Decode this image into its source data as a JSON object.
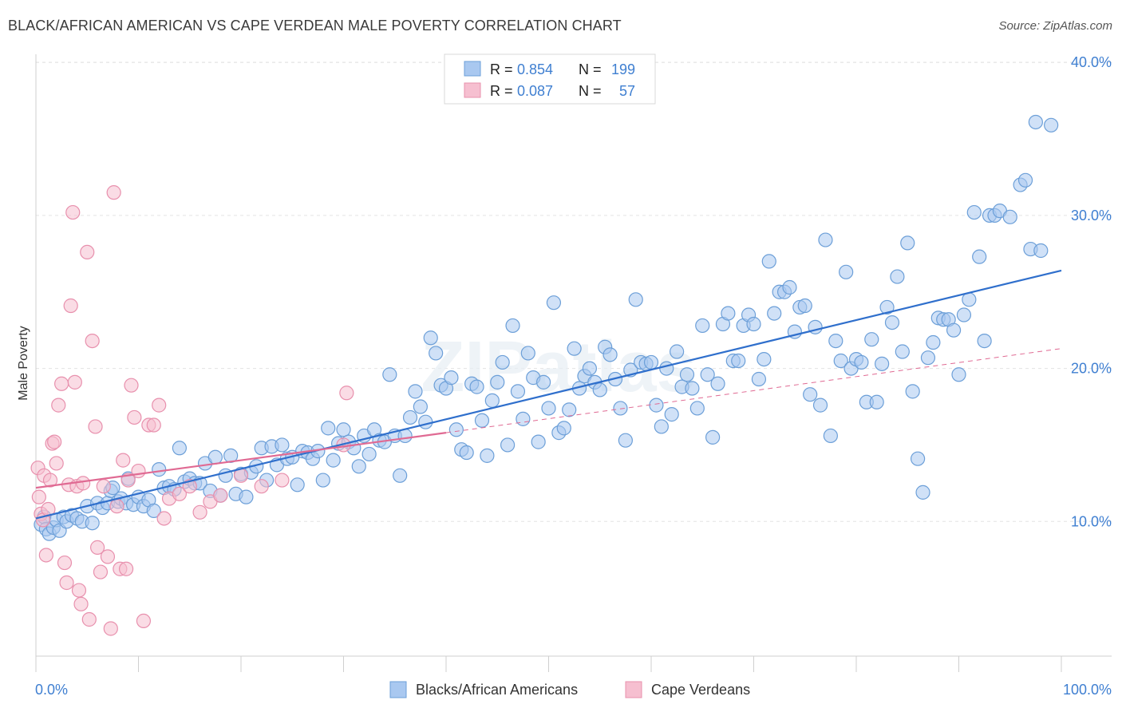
{
  "header": {
    "title": "BLACK/AFRICAN AMERICAN VS CAPE VERDEAN MALE POVERTY CORRELATION CHART",
    "source": "Source: ZipAtlas.com"
  },
  "watermark": "ZIPatlas",
  "stats": [
    {
      "r_label": "R =",
      "r_value": "0.854",
      "n_label": "N =",
      "n_value": "199"
    },
    {
      "r_label": "R =",
      "r_value": "0.087",
      "n_label": "N =",
      "n_value": "57"
    }
  ],
  "colors": {
    "blue_fill": "#a9c8f0",
    "blue_stroke": "#6c9fd8",
    "blue_line": "#2f6fcc",
    "pink_fill": "#f6bfd0",
    "pink_stroke": "#e890ad",
    "pink_line": "#e06a93",
    "value_text": "#3f7fd1",
    "grid": "#e0e0e0"
  },
  "chart_data": {
    "type": "scatter",
    "title": "BLACK/AFRICAN AMERICAN VS CAPE VERDEAN MALE POVERTY CORRELATION CHART",
    "xlabel": "",
    "ylabel": "Male Poverty",
    "x_tick_labels": [
      "0.0%",
      "100.0%"
    ],
    "y_tick_labels": [
      "10.0%",
      "20.0%",
      "30.0%",
      "40.0%"
    ],
    "y_ticks": [
      10,
      20,
      30,
      40
    ],
    "xlim": [
      0,
      100
    ],
    "ylim": [
      0,
      42
    ],
    "grid": true,
    "legend_position": "bottom-center",
    "series": [
      {
        "name": "Blacks/African Americans",
        "color": "#a9c8f0",
        "trend": {
          "x": [
            0,
            100
          ],
          "y": [
            10.2,
            26.4
          ],
          "style": "solid"
        },
        "points": [
          [
            0.5,
            9.8
          ],
          [
            0.8,
            10.3
          ],
          [
            1,
            9.5
          ],
          [
            1.3,
            9.2
          ],
          [
            1.7,
            9.6
          ],
          [
            2,
            10.1
          ],
          [
            2.3,
            9.4
          ],
          [
            2.7,
            10.3
          ],
          [
            3,
            10.0
          ],
          [
            3.5,
            10.4
          ],
          [
            4,
            10.2
          ],
          [
            4.5,
            10.0
          ],
          [
            5,
            11.0
          ],
          [
            5.5,
            9.9
          ],
          [
            6,
            11.2
          ],
          [
            6.5,
            10.9
          ],
          [
            7,
            11.2
          ],
          [
            7.3,
            12.0
          ],
          [
            7.5,
            12.2
          ],
          [
            8,
            11.3
          ],
          [
            8.3,
            11.5
          ],
          [
            8.8,
            11.2
          ],
          [
            9,
            12.8
          ],
          [
            9.5,
            11.1
          ],
          [
            10,
            11.6
          ],
          [
            10.5,
            11.0
          ],
          [
            11,
            11.4
          ],
          [
            11.5,
            10.7
          ],
          [
            12,
            13.4
          ],
          [
            12.5,
            12.2
          ],
          [
            13,
            12.3
          ],
          [
            13.5,
            12.1
          ],
          [
            14,
            14.8
          ],
          [
            14.5,
            12.6
          ],
          [
            15,
            12.8
          ],
          [
            15.5,
            12.5
          ],
          [
            16,
            12.5
          ],
          [
            16.5,
            13.8
          ],
          [
            17,
            12.0
          ],
          [
            17.5,
            14.2
          ],
          [
            18,
            11.7
          ],
          [
            18.5,
            13.0
          ],
          [
            19,
            14.3
          ],
          [
            19.5,
            11.8
          ],
          [
            20,
            13.1
          ],
          [
            20.5,
            11.6
          ],
          [
            21,
            13.2
          ],
          [
            21.5,
            13.6
          ],
          [
            22,
            14.8
          ],
          [
            22.5,
            12.7
          ],
          [
            23,
            14.9
          ],
          [
            23.5,
            13.7
          ],
          [
            24,
            15.0
          ],
          [
            24.5,
            14.1
          ],
          [
            25,
            14.2
          ],
          [
            25.5,
            12.4
          ],
          [
            26,
            14.6
          ],
          [
            26.5,
            14.5
          ],
          [
            27,
            14.1
          ],
          [
            27.5,
            14.6
          ],
          [
            28,
            12.7
          ],
          [
            28.5,
            16.1
          ],
          [
            29,
            14.0
          ],
          [
            29.5,
            15.1
          ],
          [
            30,
            16.0
          ],
          [
            30.5,
            15.2
          ],
          [
            31,
            14.8
          ],
          [
            31.5,
            13.6
          ],
          [
            32,
            15.6
          ],
          [
            32.5,
            14.4
          ],
          [
            33,
            16.0
          ],
          [
            33.5,
            15.3
          ],
          [
            34,
            15.2
          ],
          [
            34.5,
            19.6
          ],
          [
            35,
            15.6
          ],
          [
            35.5,
            13.0
          ],
          [
            36,
            15.6
          ],
          [
            36.5,
            16.8
          ],
          [
            37,
            18.5
          ],
          [
            37.5,
            17.5
          ],
          [
            38,
            16.5
          ],
          [
            38.5,
            22.0
          ],
          [
            39,
            21.0
          ],
          [
            39.5,
            18.9
          ],
          [
            40,
            18.7
          ],
          [
            40.5,
            19.4
          ],
          [
            41,
            16.0
          ],
          [
            41.5,
            14.7
          ],
          [
            42,
            14.5
          ],
          [
            42.5,
            19.0
          ],
          [
            43,
            18.8
          ],
          [
            43.5,
            16.6
          ],
          [
            44,
            14.3
          ],
          [
            44.5,
            17.9
          ],
          [
            45,
            19.1
          ],
          [
            45.5,
            20.4
          ],
          [
            46,
            15.0
          ],
          [
            46.5,
            22.8
          ],
          [
            47,
            18.5
          ],
          [
            47.5,
            16.7
          ],
          [
            48,
            21.0
          ],
          [
            48.5,
            19.4
          ],
          [
            49,
            15.2
          ],
          [
            49.5,
            19.1
          ],
          [
            50,
            17.4
          ],
          [
            50.5,
            24.3
          ],
          [
            51,
            15.8
          ],
          [
            51.5,
            16.1
          ],
          [
            52,
            17.3
          ],
          [
            52.5,
            21.3
          ],
          [
            53,
            18.7
          ],
          [
            53.5,
            19.5
          ],
          [
            54,
            20.0
          ],
          [
            54.5,
            19.1
          ],
          [
            55,
            18.6
          ],
          [
            55.5,
            21.4
          ],
          [
            56,
            20.9
          ],
          [
            56.5,
            19.3
          ],
          [
            57,
            17.4
          ],
          [
            57.5,
            15.3
          ],
          [
            58,
            19.9
          ],
          [
            58.5,
            24.5
          ],
          [
            59,
            20.4
          ],
          [
            59.5,
            20.3
          ],
          [
            60,
            20.4
          ],
          [
            60.5,
            17.6
          ],
          [
            61,
            16.2
          ],
          [
            61.5,
            20.0
          ],
          [
            62,
            17.0
          ],
          [
            62.5,
            21.1
          ],
          [
            63,
            18.8
          ],
          [
            63.5,
            19.6
          ],
          [
            64,
            18.7
          ],
          [
            64.5,
            17.4
          ],
          [
            65,
            22.8
          ],
          [
            65.5,
            19.6
          ],
          [
            66,
            15.5
          ],
          [
            66.5,
            19.0
          ],
          [
            67,
            22.9
          ],
          [
            67.5,
            23.6
          ],
          [
            68,
            20.5
          ],
          [
            68.5,
            20.5
          ],
          [
            69,
            22.8
          ],
          [
            69.5,
            23.5
          ],
          [
            70,
            22.9
          ],
          [
            70.5,
            19.3
          ],
          [
            71,
            20.6
          ],
          [
            71.5,
            27.0
          ],
          [
            72,
            23.6
          ],
          [
            72.5,
            25.0
          ],
          [
            73,
            25.0
          ],
          [
            73.5,
            25.3
          ],
          [
            74,
            22.4
          ],
          [
            74.5,
            24.0
          ],
          [
            75,
            24.1
          ],
          [
            75.5,
            18.3
          ],
          [
            76,
            22.7
          ],
          [
            76.5,
            17.6
          ],
          [
            77,
            28.4
          ],
          [
            77.5,
            15.6
          ],
          [
            78,
            21.8
          ],
          [
            78.5,
            20.5
          ],
          [
            79,
            26.3
          ],
          [
            79.5,
            20.0
          ],
          [
            80,
            20.6
          ],
          [
            80.5,
            20.4
          ],
          [
            81,
            17.8
          ],
          [
            81.5,
            21.9
          ],
          [
            82,
            17.8
          ],
          [
            82.5,
            20.3
          ],
          [
            83,
            24.0
          ],
          [
            83.5,
            23.0
          ],
          [
            84,
            26.0
          ],
          [
            84.5,
            21.1
          ],
          [
            85,
            28.2
          ],
          [
            85.5,
            18.5
          ],
          [
            86,
            14.1
          ],
          [
            86.5,
            11.9
          ],
          [
            87,
            20.7
          ],
          [
            87.5,
            21.7
          ],
          [
            88,
            23.3
          ],
          [
            88.5,
            23.2
          ],
          [
            89,
            23.2
          ],
          [
            89.5,
            22.5
          ],
          [
            90,
            19.6
          ],
          [
            90.5,
            23.5
          ],
          [
            91,
            24.5
          ],
          [
            91.5,
            30.2
          ],
          [
            92,
            27.3
          ],
          [
            92.5,
            21.8
          ],
          [
            93,
            30.0
          ],
          [
            93.5,
            30.0
          ],
          [
            94,
            30.3
          ],
          [
            95,
            29.9
          ],
          [
            96,
            32.0
          ],
          [
            96.5,
            32.3
          ],
          [
            97,
            27.8
          ],
          [
            97.5,
            36.1
          ],
          [
            98,
            27.7
          ],
          [
            99,
            35.9
          ]
        ]
      },
      {
        "name": "Cape Verdeans",
        "color": "#f6bfd0",
        "trend": {
          "x": [
            0,
            40
          ],
          "y": [
            12.2,
            15.8
          ],
          "x_dashed_end": 100,
          "y_dashed_end": 21.3,
          "style": "solid-then-dashed"
        },
        "points": [
          [
            0.2,
            13.5
          ],
          [
            0.3,
            11.6
          ],
          [
            0.5,
            10.5
          ],
          [
            0.7,
            10.1
          ],
          [
            0.8,
            13.0
          ],
          [
            1,
            7.8
          ],
          [
            1.2,
            10.8
          ],
          [
            1.4,
            12.7
          ],
          [
            1.6,
            15.1
          ],
          [
            1.8,
            15.2
          ],
          [
            2,
            13.8
          ],
          [
            2.2,
            17.6
          ],
          [
            2.5,
            19.0
          ],
          [
            2.8,
            7.3
          ],
          [
            3,
            6.0
          ],
          [
            3.2,
            12.4
          ],
          [
            3.4,
            24.1
          ],
          [
            3.6,
            30.2
          ],
          [
            3.8,
            19.1
          ],
          [
            4,
            12.3
          ],
          [
            4.2,
            5.5
          ],
          [
            4.4,
            4.6
          ],
          [
            4.6,
            12.5
          ],
          [
            5,
            27.6
          ],
          [
            5.2,
            3.6
          ],
          [
            5.5,
            21.8
          ],
          [
            5.8,
            16.2
          ],
          [
            6,
            8.3
          ],
          [
            6.3,
            6.7
          ],
          [
            6.6,
            12.3
          ],
          [
            7,
            7.7
          ],
          [
            7.3,
            3.0
          ],
          [
            7.6,
            31.5
          ],
          [
            7.9,
            11.0
          ],
          [
            8.2,
            6.9
          ],
          [
            8.5,
            14.0
          ],
          [
            8.8,
            6.9
          ],
          [
            9,
            12.7
          ],
          [
            9.3,
            18.9
          ],
          [
            9.6,
            16.8
          ],
          [
            10,
            13.3
          ],
          [
            10.5,
            3.5
          ],
          [
            11,
            16.3
          ],
          [
            11.5,
            16.3
          ],
          [
            12,
            17.6
          ],
          [
            12.5,
            10.2
          ],
          [
            13,
            11.5
          ],
          [
            14,
            11.8
          ],
          [
            15,
            12.3
          ],
          [
            16,
            10.6
          ],
          [
            17,
            11.3
          ],
          [
            18,
            11.7
          ],
          [
            20,
            13.0
          ],
          [
            22,
            12.3
          ],
          [
            24,
            12.7
          ],
          [
            30,
            15.0
          ],
          [
            30.3,
            18.4
          ]
        ]
      }
    ]
  }
}
